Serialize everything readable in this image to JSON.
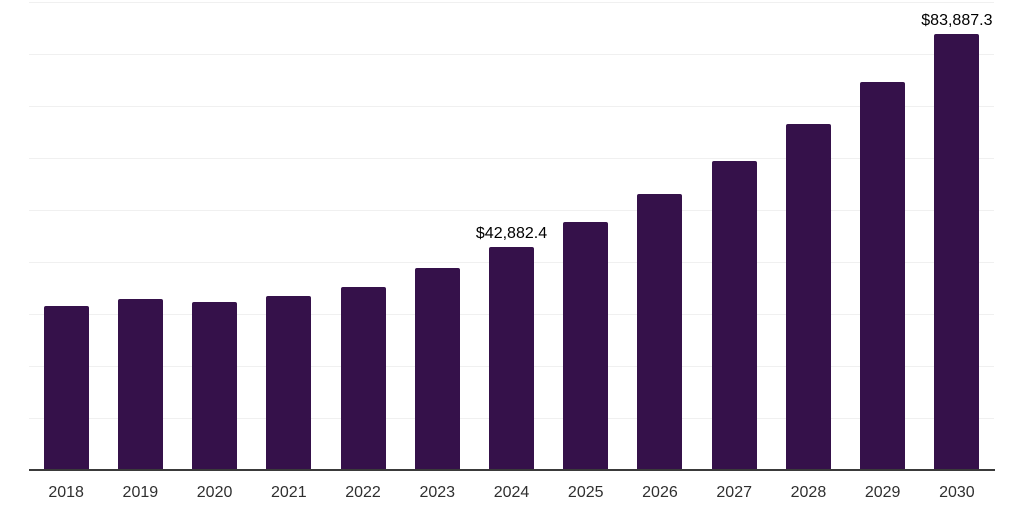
{
  "chart_data": {
    "type": "bar",
    "title": "",
    "xlabel": "",
    "ylabel": "",
    "categories": [
      "2018",
      "2019",
      "2020",
      "2021",
      "2022",
      "2023",
      "2024",
      "2025",
      "2026",
      "2027",
      "2028",
      "2029",
      "2030"
    ],
    "values": [
      31500,
      32900,
      32300,
      33500,
      35200,
      38900,
      42882.4,
      47700,
      53000,
      59400,
      66500,
      74600,
      83887.3
    ],
    "annotations": [
      {
        "category": "2024",
        "text": "$42,882.4"
      },
      {
        "category": "2030",
        "text": "$83,887.3"
      }
    ],
    "ylim": [
      0,
      90000
    ],
    "grid_step": 10000,
    "grid_on": true,
    "legend": "none",
    "colors": {
      "bar": "#35114A",
      "axis_line": "#3a3a3a",
      "gridline": "#f0f0f0",
      "value_label_text": "#000000",
      "tick_label_text": "#2f2f2f",
      "background": "#ffffff"
    }
  }
}
